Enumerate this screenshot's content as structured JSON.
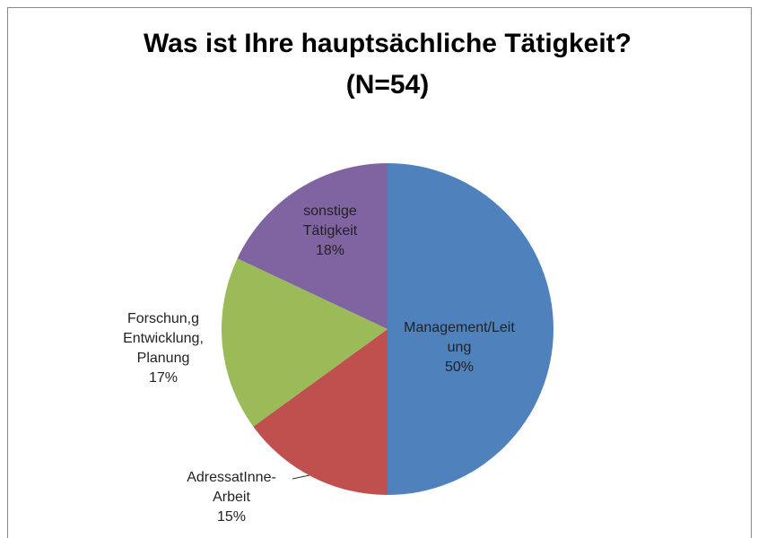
{
  "chart_data": {
    "type": "pie",
    "title": [
      "Was ist Ihre hauptsächliche Tätigkeit?",
      "(N=54)"
    ],
    "categories": [
      "Management/Leitung",
      "AdressatInne-Arbeit",
      "Forschun,g Entwicklung, Planung",
      "sonstige Tätigkeit"
    ],
    "values": [
      50,
      15,
      17,
      18
    ],
    "value_labels": [
      "50%",
      "15%",
      "17%",
      "18%"
    ],
    "colors": [
      "#4f81bd",
      "#c0504d",
      "#9bbb59",
      "#8064a2"
    ]
  }
}
